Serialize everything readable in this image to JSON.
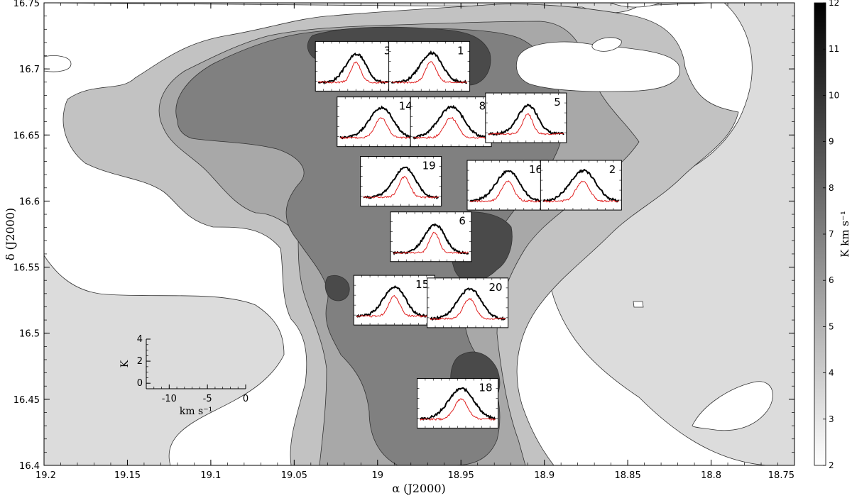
{
  "chart_data": {
    "type": "heatmap",
    "title": "",
    "xlabel": "α (J2000)",
    "ylabel": "δ (J2000)",
    "xlim": [
      19.2,
      18.75
    ],
    "ylim": [
      16.4,
      16.75
    ],
    "x_ticks": [
      "19.2",
      "19.15",
      "19.1",
      "19.05",
      "19",
      "18.95",
      "18.9",
      "18.85",
      "18.8",
      "18.75"
    ],
    "y_ticks": [
      "16.4",
      "16.45",
      "16.5",
      "16.55",
      "16.6",
      "16.65",
      "16.7",
      "16.75"
    ],
    "colorbar": {
      "label": "K km s⁻¹",
      "range": [
        2,
        12
      ],
      "ticks": [
        "2",
        "3",
        "4",
        "5",
        "6",
        "7",
        "8",
        "9",
        "10",
        "11",
        "12"
      ],
      "colormap": "gray reversed"
    },
    "contour_levels": [
      2.5,
      4,
      5.5,
      7,
      8.5
    ],
    "contour_fill_colors": [
      "#ffffff",
      "#dcdcdc",
      "#c2c2c2",
      "#a8a8a8",
      "#808080",
      "#4a4a4a"
    ],
    "inset_spectra": [
      {
        "label": "3",
        "alpha": 19.013,
        "delta": 16.702
      },
      {
        "label": "1",
        "alpha": 18.969,
        "delta": 16.702
      },
      {
        "label": "14",
        "alpha": 19.0,
        "delta": 16.66
      },
      {
        "label": "8",
        "alpha": 18.956,
        "delta": 16.66
      },
      {
        "label": "5",
        "alpha": 18.911,
        "delta": 16.663
      },
      {
        "label": "19",
        "alpha": 18.986,
        "delta": 16.615
      },
      {
        "label": "16",
        "alpha": 18.922,
        "delta": 16.612
      },
      {
        "label": "2",
        "alpha": 18.878,
        "delta": 16.612
      },
      {
        "label": "6",
        "alpha": 18.968,
        "delta": 16.573
      },
      {
        "label": "15",
        "alpha": 18.99,
        "delta": 16.525
      },
      {
        "label": "20",
        "alpha": 18.946,
        "delta": 16.523
      },
      {
        "label": "18",
        "alpha": 18.952,
        "delta": 16.447
      }
    ],
    "spectrum_legend_axes": {
      "xlabel": "km s⁻¹",
      "ylabel": "K",
      "xlim": [
        -13,
        0
      ],
      "ylim": [
        -0.5,
        4
      ],
      "x_ticks": [
        "-10",
        "-5",
        "0"
      ],
      "y_ticks": [
        "0",
        "2",
        "4"
      ]
    },
    "series": [
      {
        "color": "#000000"
      },
      {
        "color": "#e02020"
      }
    ]
  }
}
